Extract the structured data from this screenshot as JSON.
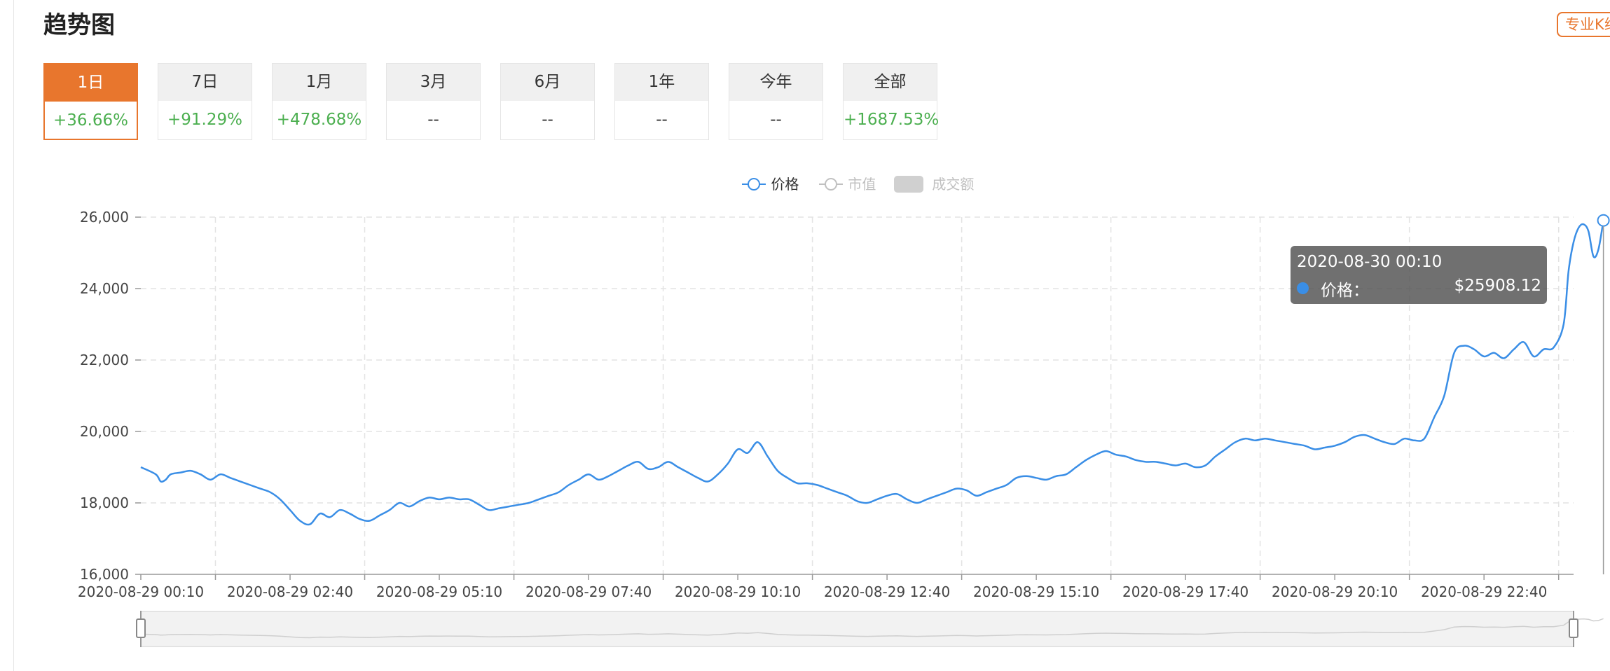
{
  "header": {
    "title": "趋势图",
    "pro_button": "专业K线"
  },
  "colors": {
    "accent": "#e8762d",
    "up": "#4caf50",
    "line": "#3a8ee6",
    "muted": "#c0c0c0"
  },
  "tabs": [
    {
      "label": "1日",
      "value": "+36.66%",
      "active": true
    },
    {
      "label": "7日",
      "value": "+91.29%",
      "active": false
    },
    {
      "label": "1月",
      "value": "+478.68%",
      "active": false
    },
    {
      "label": "3月",
      "value": "--",
      "active": false
    },
    {
      "label": "6月",
      "value": "--",
      "active": false
    },
    {
      "label": "1年",
      "value": "--",
      "active": false
    },
    {
      "label": "今年",
      "value": "--",
      "active": false
    },
    {
      "label": "全部",
      "value": "+1687.53%",
      "active": false
    }
  ],
  "legend": {
    "price": "价格",
    "market_cap": "市值",
    "volume": "成交额"
  },
  "tooltip": {
    "date": "2020-08-30 00:10",
    "label": "价格：",
    "value": "$25908.12"
  },
  "chart_data": {
    "type": "line",
    "series": [
      {
        "name": "价格"
      }
    ],
    "ylim": [
      16000,
      26000
    ],
    "yticks": [
      16000,
      18000,
      20000,
      22000,
      24000,
      26000
    ],
    "ytick_labels": [
      "16,000",
      "18,000",
      "20,000",
      "22,000",
      "24,000",
      "26,000"
    ],
    "xlim": [
      0,
      288
    ],
    "xticks": [
      0,
      15,
      30,
      45,
      60,
      75,
      90,
      105,
      120,
      135,
      150,
      165,
      180,
      195,
      210,
      225,
      240,
      255,
      270,
      285
    ],
    "xtick_labels": [
      "2020-08-29 00:10",
      "2020-08-29 02:40",
      "2020-08-29 05:10",
      "2020-08-29 07:40",
      "2020-08-29 10:10",
      "2020-08-29 12:40",
      "2020-08-29 15:10",
      "2020-08-29 17:40",
      "2020-08-29 20:10",
      "2020-08-29 22:40"
    ],
    "points": [
      [
        0,
        19000
      ],
      [
        3,
        18800
      ],
      [
        4,
        18600
      ],
      [
        5,
        18650
      ],
      [
        6,
        18800
      ],
      [
        8,
        18850
      ],
      [
        10,
        18900
      ],
      [
        12,
        18800
      ],
      [
        14,
        18650
      ],
      [
        16,
        18800
      ],
      [
        18,
        18700
      ],
      [
        20,
        18600
      ],
      [
        22,
        18500
      ],
      [
        24,
        18400
      ],
      [
        26,
        18300
      ],
      [
        28,
        18100
      ],
      [
        30,
        17800
      ],
      [
        32,
        17500
      ],
      [
        34,
        17400
      ],
      [
        36,
        17700
      ],
      [
        38,
        17600
      ],
      [
        40,
        17800
      ],
      [
        42,
        17700
      ],
      [
        44,
        17550
      ],
      [
        46,
        17500
      ],
      [
        48,
        17650
      ],
      [
        50,
        17800
      ],
      [
        52,
        18000
      ],
      [
        54,
        17900
      ],
      [
        56,
        18050
      ],
      [
        58,
        18150
      ],
      [
        60,
        18100
      ],
      [
        62,
        18150
      ],
      [
        64,
        18100
      ],
      [
        66,
        18100
      ],
      [
        68,
        17950
      ],
      [
        70,
        17800
      ],
      [
        72,
        17850
      ],
      [
        74,
        17900
      ],
      [
        76,
        17950
      ],
      [
        78,
        18000
      ],
      [
        80,
        18100
      ],
      [
        82,
        18200
      ],
      [
        84,
        18300
      ],
      [
        86,
        18500
      ],
      [
        88,
        18650
      ],
      [
        90,
        18800
      ],
      [
        92,
        18650
      ],
      [
        94,
        18750
      ],
      [
        96,
        18900
      ],
      [
        98,
        19050
      ],
      [
        100,
        19150
      ],
      [
        102,
        18950
      ],
      [
        104,
        19000
      ],
      [
        106,
        19150
      ],
      [
        108,
        19000
      ],
      [
        110,
        18850
      ],
      [
        112,
        18700
      ],
      [
        114,
        18600
      ],
      [
        116,
        18800
      ],
      [
        118,
        19100
      ],
      [
        120,
        19500
      ],
      [
        122,
        19400
      ],
      [
        124,
        19700
      ],
      [
        126,
        19300
      ],
      [
        128,
        18900
      ],
      [
        130,
        18700
      ],
      [
        132,
        18550
      ],
      [
        134,
        18550
      ],
      [
        136,
        18500
      ],
      [
        138,
        18400
      ],
      [
        140,
        18300
      ],
      [
        142,
        18200
      ],
      [
        144,
        18050
      ],
      [
        146,
        18000
      ],
      [
        148,
        18100
      ],
      [
        150,
        18200
      ],
      [
        152,
        18250
      ],
      [
        154,
        18100
      ],
      [
        156,
        18000
      ],
      [
        158,
        18100
      ],
      [
        160,
        18200
      ],
      [
        162,
        18300
      ],
      [
        164,
        18400
      ],
      [
        166,
        18350
      ],
      [
        168,
        18200
      ],
      [
        170,
        18300
      ],
      [
        172,
        18400
      ],
      [
        174,
        18500
      ],
      [
        176,
        18700
      ],
      [
        178,
        18750
      ],
      [
        180,
        18700
      ],
      [
        182,
        18650
      ],
      [
        184,
        18750
      ],
      [
        186,
        18800
      ],
      [
        188,
        19000
      ],
      [
        190,
        19200
      ],
      [
        192,
        19350
      ],
      [
        194,
        19450
      ],
      [
        196,
        19350
      ],
      [
        198,
        19300
      ],
      [
        200,
        19200
      ],
      [
        202,
        19150
      ],
      [
        204,
        19150
      ],
      [
        206,
        19100
      ],
      [
        208,
        19050
      ],
      [
        210,
        19100
      ],
      [
        212,
        19000
      ],
      [
        214,
        19050
      ],
      [
        216,
        19300
      ],
      [
        218,
        19500
      ],
      [
        220,
        19700
      ],
      [
        222,
        19800
      ],
      [
        224,
        19750
      ],
      [
        226,
        19800
      ],
      [
        228,
        19750
      ],
      [
        230,
        19700
      ],
      [
        232,
        19650
      ],
      [
        234,
        19600
      ],
      [
        236,
        19500
      ],
      [
        238,
        19550
      ],
      [
        240,
        19600
      ],
      [
        242,
        19700
      ],
      [
        244,
        19850
      ],
      [
        246,
        19900
      ],
      [
        248,
        19800
      ],
      [
        250,
        19700
      ],
      [
        252,
        19650
      ],
      [
        254,
        19800
      ],
      [
        256,
        19750
      ],
      [
        258,
        19800
      ],
      [
        260,
        20400
      ],
      [
        262,
        21000
      ],
      [
        264,
        22200
      ],
      [
        266,
        22400
      ],
      [
        268,
        22300
      ],
      [
        270,
        22100
      ],
      [
        272,
        22200
      ],
      [
        274,
        22050
      ],
      [
        276,
        22300
      ],
      [
        278,
        22500
      ],
      [
        280,
        22100
      ],
      [
        282,
        22300
      ],
      [
        284,
        22350
      ],
      [
        286,
        23000
      ],
      [
        287,
        24500
      ],
      [
        288,
        25300
      ],
      [
        289,
        25700
      ],
      [
        290,
        25800
      ],
      [
        291,
        25600
      ],
      [
        292,
        24900
      ],
      [
        293,
        25100
      ],
      [
        294,
        25908
      ]
    ]
  }
}
